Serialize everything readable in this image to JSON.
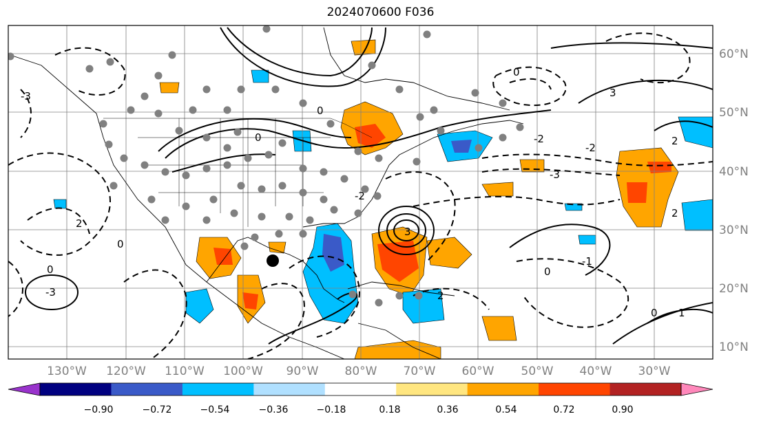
{
  "title": "2024070600 F036",
  "lon_labels": [
    "130°W",
    "120°W",
    "110°W",
    "100°W",
    "90°W",
    "80°W",
    "70°W",
    "60°W",
    "50°W",
    "40°W",
    "30°W"
  ],
  "lat_labels": [
    "60°N",
    "50°N",
    "40°N",
    "30°N",
    "20°N",
    "10°N"
  ],
  "colorbar": {
    "ticks": [
      "−0.90",
      "−0.72",
      "−0.54",
      "−0.36",
      "−0.18",
      "0.18",
      "0.36",
      "0.54",
      "0.72",
      "0.90"
    ],
    "colors": [
      "#9933cc",
      "#000080",
      "#3a5ac8",
      "#00bfff",
      "#b0e0ff",
      "#ffffff",
      "#ffe680",
      "#ffa500",
      "#ff4500",
      "#b22222",
      "#ff88bb"
    ]
  },
  "contour_labels": [
    "-3",
    "-2",
    "-1",
    "0",
    "1",
    "2",
    "3"
  ],
  "palette": {
    "neg_strong": "#3a5ac8",
    "neg": "#00bfff",
    "pos": "#ffa500",
    "pos_strong": "#ff4500",
    "station": "#808080"
  }
}
